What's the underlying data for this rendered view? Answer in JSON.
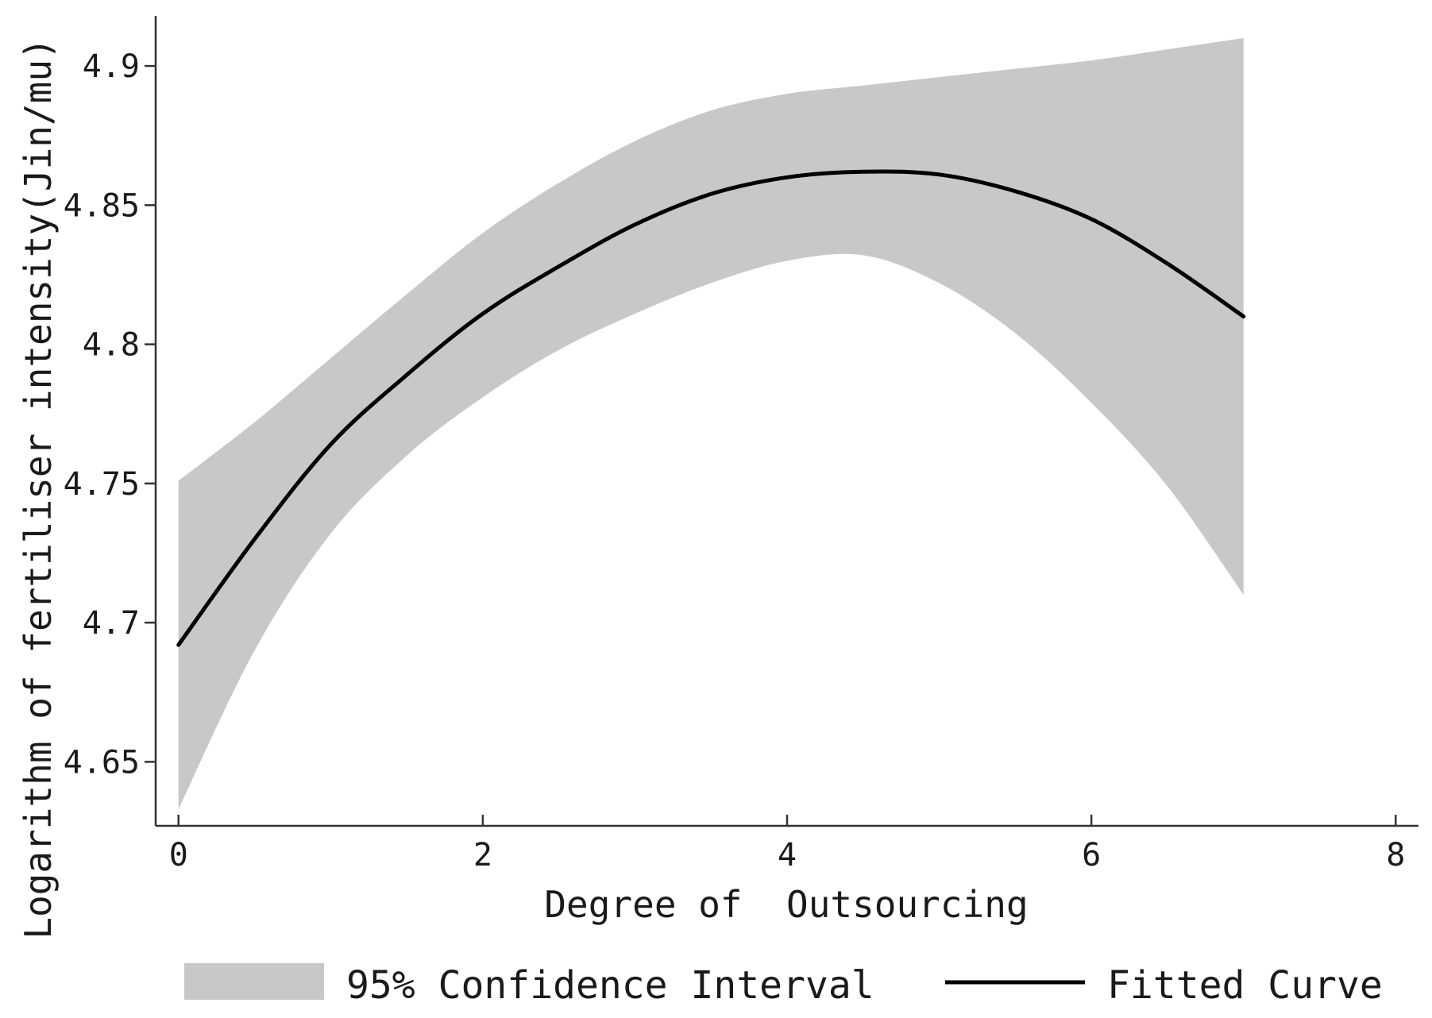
{
  "chart_data": {
    "type": "line",
    "title": "",
    "xlabel": "Degree of  Outsourcing",
    "ylabel": "Logarithm of fertiliser intensity(Jin/mu)",
    "xlim": [
      -0.15,
      8.15
    ],
    "ylim": [
      4.627,
      4.918
    ],
    "x_ticks": [
      0,
      2,
      4,
      6,
      8
    ],
    "x_tick_labels": [
      "0",
      "2",
      "4",
      "6",
      "8"
    ],
    "y_ticks": [
      4.65,
      4.7,
      4.75,
      4.8,
      4.85,
      4.9
    ],
    "y_tick_labels": [
      "4.65",
      "4.7",
      "4.75",
      "4.8",
      "4.85",
      "4.9"
    ],
    "grid": false,
    "legend_position": "bottom",
    "series": [
      {
        "name": "Fitted Curve",
        "kind": "line",
        "color": "#000000",
        "x": [
          0,
          0.5,
          1,
          1.5,
          2,
          2.5,
          3,
          3.5,
          4,
          4.5,
          5,
          5.5,
          6,
          6.5,
          7
        ],
        "y": [
          4.692,
          4.73,
          4.764,
          4.789,
          4.811,
          4.828,
          4.843,
          4.854,
          4.86,
          4.862,
          4.861,
          4.855,
          4.845,
          4.829,
          4.81
        ]
      },
      {
        "name": "95% Confidence Interval",
        "kind": "band",
        "color": "#c8c8c8",
        "x": [
          0,
          0.5,
          1,
          1.5,
          2,
          2.5,
          3,
          3.5,
          4,
          4.5,
          5,
          5.5,
          6,
          6.5,
          7
        ],
        "upper": [
          4.751,
          4.772,
          4.795,
          4.818,
          4.84,
          4.858,
          4.873,
          4.884,
          4.89,
          4.893,
          4.896,
          4.899,
          4.902,
          4.906,
          4.91
        ],
        "lower": [
          4.633,
          4.69,
          4.732,
          4.76,
          4.781,
          4.798,
          4.811,
          4.822,
          4.83,
          4.832,
          4.822,
          4.804,
          4.779,
          4.749,
          4.71
        ]
      }
    ]
  }
}
